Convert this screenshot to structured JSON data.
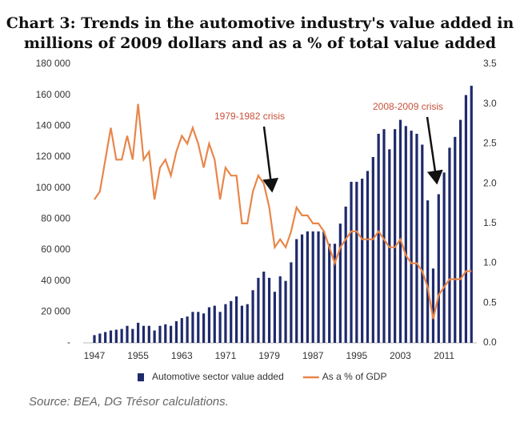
{
  "chart_data": {
    "type": "bar",
    "title": "Chart 3: Trends in the automotive industry's value added in",
    "subtitle": "millions of 2009 dollars and as a % of total value added",
    "source": "Source: BEA, DG Trésor calculations.",
    "categories": [
      "1947",
      null,
      null,
      null,
      null,
      null,
      null,
      null,
      "1955",
      null,
      null,
      null,
      null,
      null,
      null,
      null,
      "1963",
      null,
      null,
      null,
      null,
      null,
      null,
      null,
      "1971",
      null,
      null,
      null,
      null,
      null,
      null,
      null,
      "1979",
      null,
      null,
      null,
      null,
      null,
      null,
      null,
      "1987",
      null,
      null,
      null,
      null,
      null,
      null,
      null,
      "1995",
      null,
      null,
      null,
      null,
      null,
      null,
      null,
      "2003",
      null,
      null,
      null,
      null,
      null,
      null,
      null,
      "2011",
      null,
      null,
      null,
      null,
      null
    ],
    "series": [
      {
        "name": "Automotive sector value added",
        "type": "bar",
        "color": "#1f2a6b",
        "values": [
          5000,
          6000,
          7000,
          8000,
          8500,
          9000,
          11000,
          9000,
          13000,
          11000,
          11000,
          8000,
          11000,
          12000,
          11000,
          14000,
          16000,
          17000,
          20000,
          20000,
          19000,
          23000,
          24000,
          20000,
          25000,
          27000,
          30000,
          24000,
          25000,
          34000,
          42000,
          46000,
          42000,
          33000,
          43000,
          40000,
          52000,
          67000,
          70000,
          72000,
          72000,
          72000,
          72000,
          64000,
          64000,
          77000,
          88000,
          104000,
          104000,
          106000,
          111000,
          120000,
          135000,
          138000,
          125000,
          138000,
          144000,
          140000,
          137000,
          135000,
          128000,
          92000,
          48000,
          96000,
          110000,
          126000,
          133000,
          144000,
          160000,
          166000
        ]
      },
      {
        "name": "As a % of GDP",
        "type": "line",
        "axis": "y2",
        "color": "#e8864a",
        "values": [
          1.8,
          1.9,
          2.3,
          2.7,
          2.3,
          2.3,
          2.6,
          2.3,
          3.0,
          2.3,
          2.4,
          1.8,
          2.2,
          2.3,
          2.1,
          2.4,
          2.6,
          2.5,
          2.7,
          2.5,
          2.2,
          2.5,
          2.3,
          1.8,
          2.2,
          2.1,
          2.1,
          1.5,
          1.5,
          1.9,
          2.1,
          2.0,
          1.7,
          1.2,
          1.3,
          1.2,
          1.4,
          1.7,
          1.6,
          1.6,
          1.5,
          1.5,
          1.4,
          1.2,
          1.0,
          1.2,
          1.3,
          1.4,
          1.4,
          1.3,
          1.3,
          1.3,
          1.4,
          1.3,
          1.2,
          1.2,
          1.3,
          1.1,
          1.0,
          1.0,
          0.9,
          0.7,
          0.3,
          0.6,
          0.7,
          0.8,
          0.8,
          0.8,
          0.9,
          0.9
        ]
      }
    ],
    "ylim": [
      0,
      180000
    ],
    "yticks": [
      {
        "value": 0,
        "label": "-"
      },
      {
        "value": 20000,
        "label": "20 000"
      },
      {
        "value": 40000,
        "label": "40 000"
      },
      {
        "value": 60000,
        "label": "60 000"
      },
      {
        "value": 80000,
        "label": "80 000"
      },
      {
        "value": 100000,
        "label": "100 000"
      },
      {
        "value": 120000,
        "label": "120 000"
      },
      {
        "value": 140000,
        "label": "140 000"
      },
      {
        "value": 160000,
        "label": "160 000"
      },
      {
        "value": 180000,
        "label": "180 000"
      }
    ],
    "y2lim": [
      0,
      3.5
    ],
    "y2ticks": [
      {
        "value": 0,
        "label": "0.0"
      },
      0.5,
      {
        "value": 1,
        "label": "1.0"
      },
      1.5,
      {
        "value": 2,
        "label": "2.0"
      },
      2.5,
      {
        "value": 3,
        "label": "3.0"
      },
      3.5
    ],
    "annotations": [
      "1979-1982 crisis",
      "2008-2009 crisis"
    ],
    "legend": "bottom"
  }
}
